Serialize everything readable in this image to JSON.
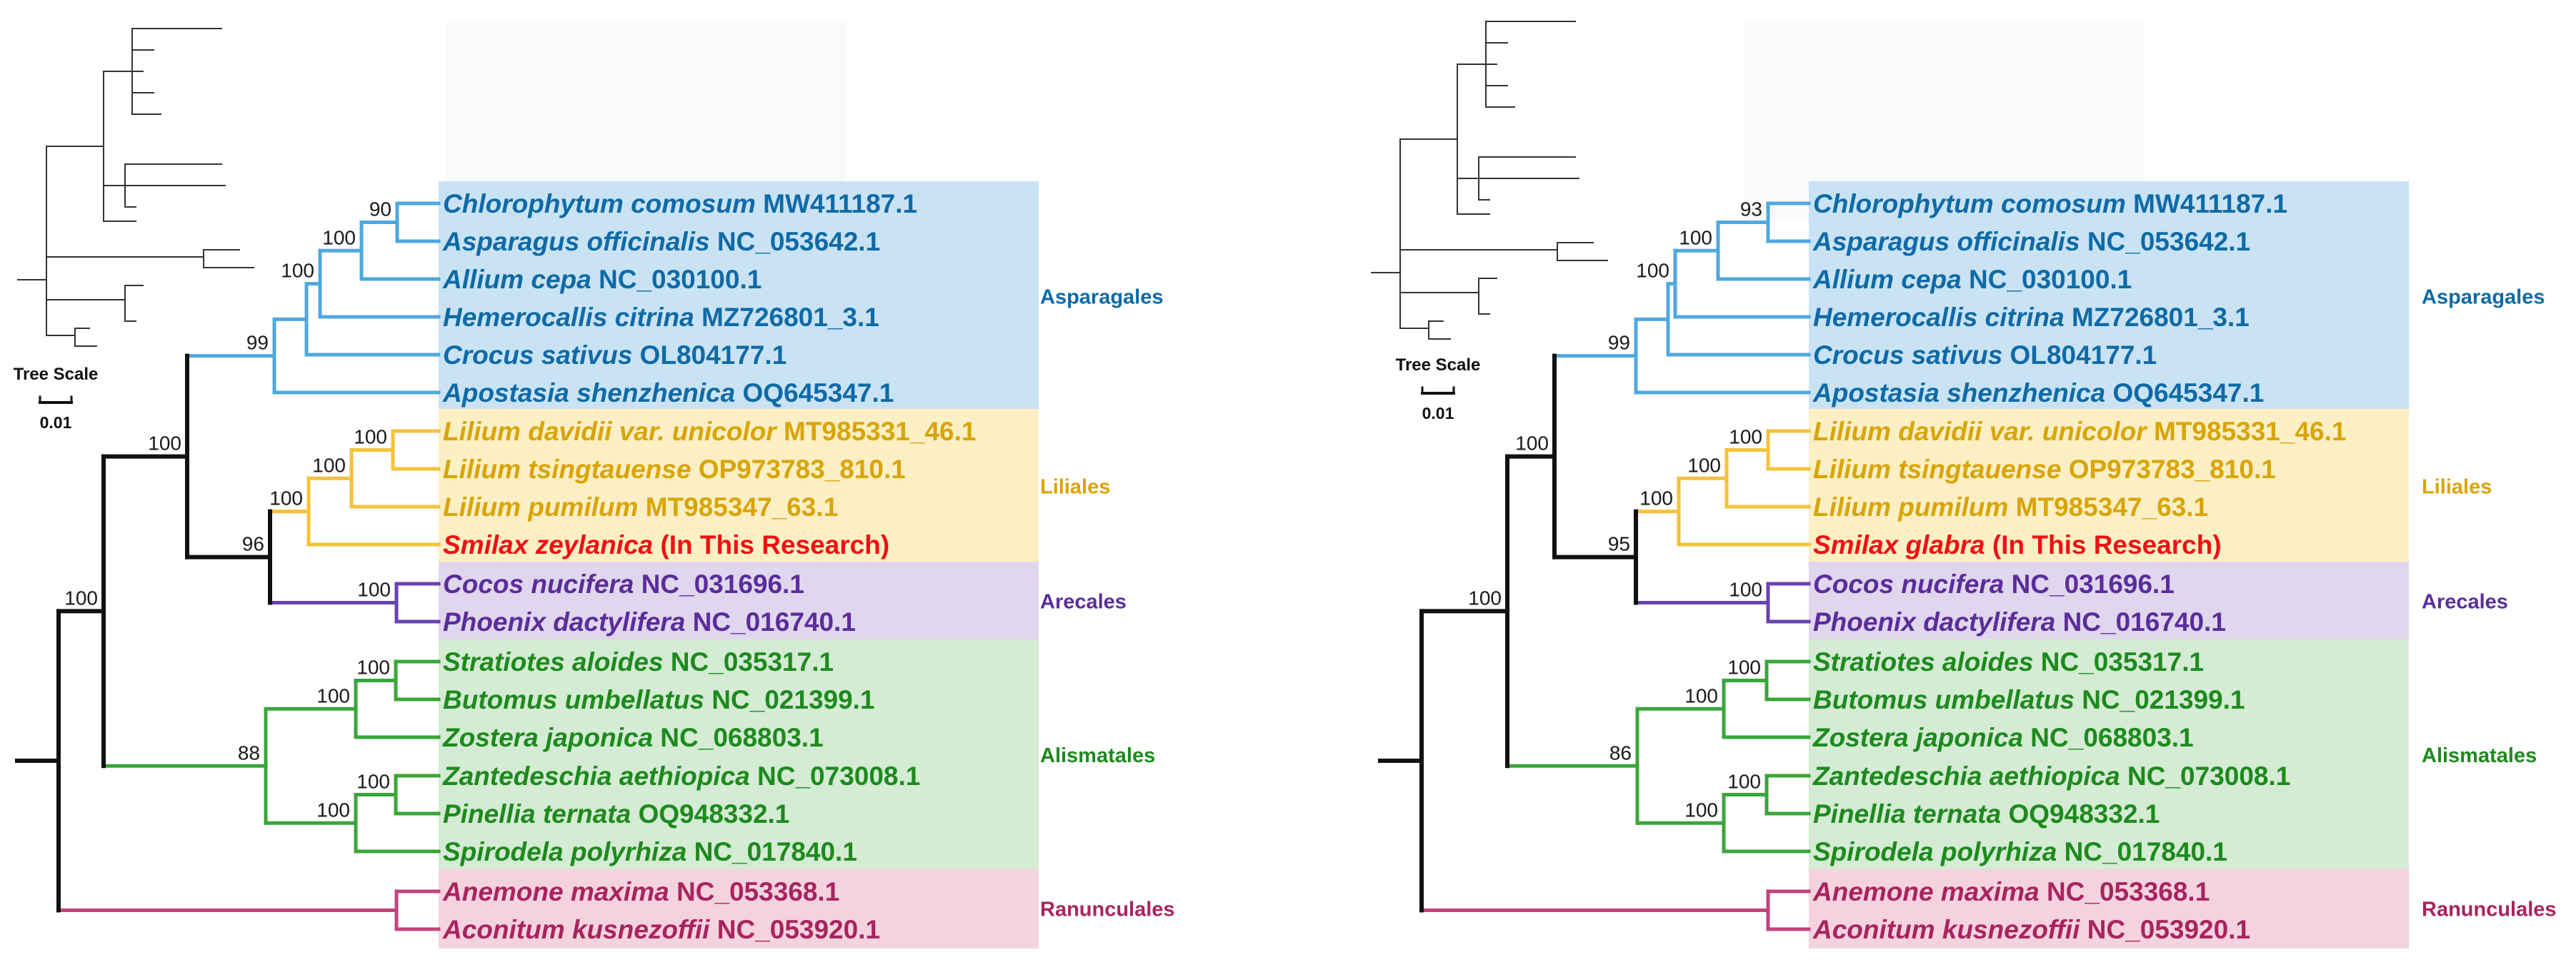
{
  "scale_bar": {
    "title": "Tree Scale",
    "value": "0.01"
  },
  "clade_labels": {
    "asparagales": "Asparagales",
    "liliales": "Liliales",
    "arecales": "Arecales",
    "alismatales": "Alismatales",
    "ranunculales": "Ranunculales"
  },
  "colors": {
    "asparagales_text": "#0e6aa6",
    "asparagales_branch": "#4fa8e0",
    "asparagales_box": "#c9e3f4",
    "liliales_text": "#d9a406",
    "liliales_branch": "#f4c23a",
    "liliales_box": "#fcefc4",
    "highlight_text": "#ee1111",
    "arecales_text": "#5a2d9a",
    "arecales_branch": "#6a42b0",
    "arecales_box": "#e0d6ee",
    "alismatales_text": "#1d8a1d",
    "alismatales_branch": "#39a639",
    "alismatales_box": "#d4ebd4",
    "ranunculales_text": "#a8245e",
    "ranunculales_branch": "#c2447c",
    "ranunculales_box": "#f4d3df",
    "backbone": "#111111"
  },
  "trees": [
    {
      "taxa": [
        {
          "species": "Chlorophytum comosum",
          "accession": "MW411187.1"
        },
        {
          "species": "Asparagus officinalis",
          "accession": "NC_053642.1"
        },
        {
          "species": "Allium cepa",
          "accession": "NC_030100.1"
        },
        {
          "species": "Hemerocallis citrina",
          "accession": "MZ726801_3.1"
        },
        {
          "species": "Crocus sativus",
          "accession": "OL804177.1"
        },
        {
          "species": "Apostasia shenzhenica",
          "accession": "OQ645347.1"
        },
        {
          "species": "Lilium davidii var. unicolor",
          "accession": "MT985331_46.1"
        },
        {
          "species": "Lilium tsingtauense",
          "accession": "OP973783_810.1"
        },
        {
          "species": "Lilium pumilum",
          "accession": "MT985347_63.1"
        },
        {
          "species": "Smilax zeylanica",
          "accession": "(In This Research)"
        },
        {
          "species": "Cocos nucifera",
          "accession": "NC_031696.1"
        },
        {
          "species": "Phoenix dactylifera",
          "accession": "NC_016740.1"
        },
        {
          "species": "Stratiotes aloides",
          "accession": "NC_035317.1"
        },
        {
          "species": "Butomus umbellatus",
          "accession": "NC_021399.1"
        },
        {
          "species": "Zostera japonica",
          "accession": "NC_068803.1"
        },
        {
          "species": "Zantedeschia aethiopica",
          "accession": "NC_073008.1"
        },
        {
          "species": "Pinellia ternata",
          "accession": "OQ948332.1"
        },
        {
          "species": "Spirodela polyrhiza",
          "accession": "NC_017840.1"
        },
        {
          "species": "Anemone maxima",
          "accession": "NC_053368.1"
        },
        {
          "species": "Aconitum kusnezoffii",
          "accession": "NC_053920.1"
        }
      ],
      "supports": {
        "chloro_aspar": "90",
        "plus_allium": "100",
        "plus_hemero": "100",
        "asparagales": "99",
        "lilium_davidii_tsing": "100",
        "lilium_all": "100",
        "liliales": "100",
        "liliales_arecales": "96",
        "arecales": "100",
        "petaloid": "100",
        "alismatales": "88",
        "alisma_upper": "100",
        "stratiotes_butomus": "100",
        "alisma_lower": "100",
        "zante_pinellia": "100",
        "monocots": "100"
      }
    },
    {
      "taxa": [
        {
          "species": "Chlorophytum comosum",
          "accession": "MW411187.1"
        },
        {
          "species": "Asparagus officinalis",
          "accession": "NC_053642.1"
        },
        {
          "species": "Allium cepa",
          "accession": "NC_030100.1"
        },
        {
          "species": "Hemerocallis citrina",
          "accession": "MZ726801_3.1"
        },
        {
          "species": "Crocus sativus",
          "accession": "OL804177.1"
        },
        {
          "species": "Apostasia shenzhenica",
          "accession": "OQ645347.1"
        },
        {
          "species": "Lilium davidii var. unicolor",
          "accession": "MT985331_46.1"
        },
        {
          "species": "Lilium tsingtauense",
          "accession": "OP973783_810.1"
        },
        {
          "species": "Lilium pumilum",
          "accession": "MT985347_63.1"
        },
        {
          "species": "Smilax glabra",
          "accession": "(In This Research)"
        },
        {
          "species": "Cocos nucifera",
          "accession": "NC_031696.1"
        },
        {
          "species": "Phoenix dactylifera",
          "accession": "NC_016740.1"
        },
        {
          "species": "Stratiotes aloides",
          "accession": "NC_035317.1"
        },
        {
          "species": "Butomus umbellatus",
          "accession": "NC_021399.1"
        },
        {
          "species": "Zostera japonica",
          "accession": "NC_068803.1"
        },
        {
          "species": "Zantedeschia aethiopica",
          "accession": "NC_073008.1"
        },
        {
          "species": "Pinellia ternata",
          "accession": "OQ948332.1"
        },
        {
          "species": "Spirodela polyrhiza",
          "accession": "NC_017840.1"
        },
        {
          "species": "Anemone maxima",
          "accession": "NC_053368.1"
        },
        {
          "species": "Aconitum kusnezoffii",
          "accession": "NC_053920.1"
        }
      ],
      "supports": {
        "chloro_aspar": "93",
        "plus_allium": "100",
        "plus_hemero": "100",
        "asparagales": "99",
        "lilium_davidii_tsing": "100",
        "lilium_all": "100",
        "liliales": "100",
        "liliales_arecales": "95",
        "arecales": "100",
        "petaloid": "100",
        "alismatales": "86",
        "alisma_upper": "100",
        "stratiotes_butomus": "100",
        "alisma_lower": "100",
        "zante_pinellia": "100",
        "monocots": "100"
      }
    }
  ]
}
